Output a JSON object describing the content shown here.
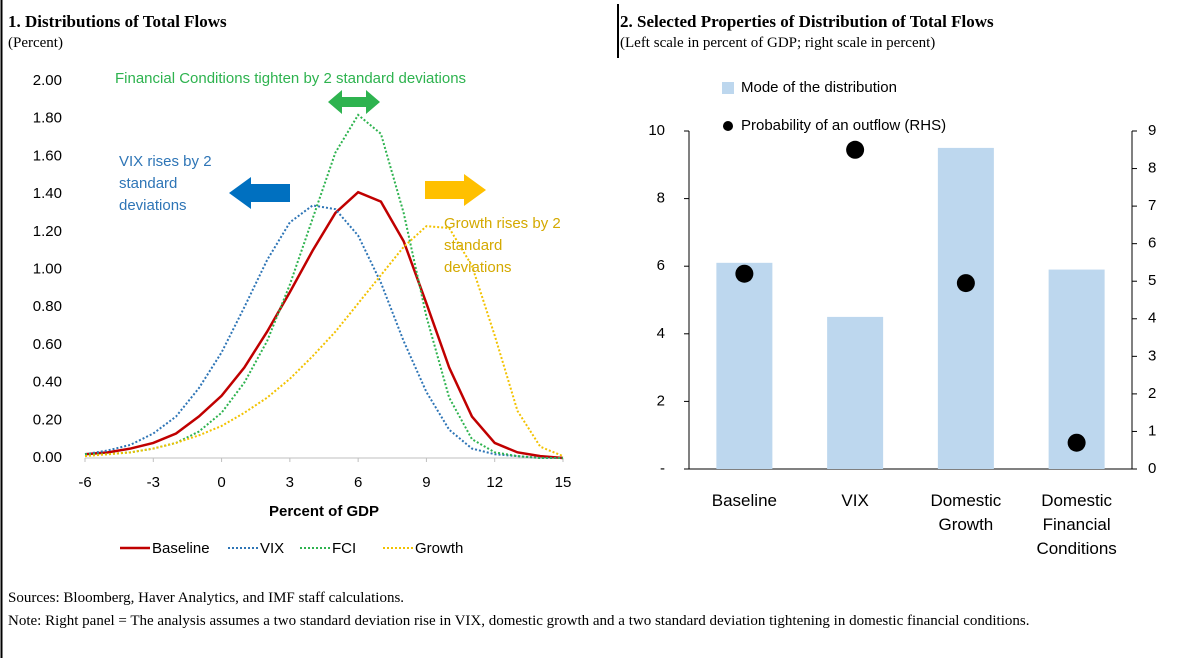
{
  "chart_data": [
    {
      "type": "line",
      "title": "1. Distributions of Total Flows",
      "subtitle": "(Percent)",
      "xlabel": "Percent of GDP",
      "x": [
        -6,
        -5,
        -4,
        -3,
        -2,
        -1,
        0,
        1,
        2,
        3,
        4,
        5,
        6,
        7,
        8,
        9,
        10,
        11,
        12,
        13,
        14,
        15
      ],
      "xlim": [
        -6,
        15
      ],
      "xticks": [
        -6,
        -3,
        0,
        3,
        6,
        9,
        12,
        15
      ],
      "ylim": [
        0,
        2
      ],
      "yticks": [
        {
          "value": 0,
          "label": "0.00"
        },
        {
          "value": 0.2,
          "label": "0.20"
        },
        {
          "value": 0.4,
          "label": "0.40"
        },
        {
          "value": 0.6,
          "label": "0.60"
        },
        {
          "value": 0.8,
          "label": "0.80"
        },
        {
          "value": 1,
          "label": "1.00"
        },
        {
          "value": 1.2,
          "label": "1.20"
        },
        {
          "value": 1.4,
          "label": "1.40"
        },
        {
          "value": 1.6,
          "label": "1.60"
        },
        {
          "value": 1.8,
          "label": "1.80"
        },
        {
          "value": 2,
          "label": "2.00"
        }
      ],
      "series": [
        {
          "name": "Baseline",
          "color": "#c00000",
          "dash": false,
          "values": [
            0.02,
            0.03,
            0.05,
            0.08,
            0.13,
            0.22,
            0.33,
            0.48,
            0.67,
            0.88,
            1.1,
            1.3,
            1.41,
            1.36,
            1.15,
            0.82,
            0.48,
            0.22,
            0.08,
            0.03,
            0.01,
            0
          ]
        },
        {
          "name": "VIX",
          "color": "#2e75b6",
          "dash": true,
          "values": [
            0.02,
            0.04,
            0.07,
            0.13,
            0.22,
            0.37,
            0.56,
            0.8,
            1.05,
            1.25,
            1.34,
            1.32,
            1.18,
            0.93,
            0.62,
            0.35,
            0.15,
            0.05,
            0.02,
            0.01,
            0,
            0
          ]
        },
        {
          "name": "FCI",
          "color": "#2eb34f",
          "dash": true,
          "values": [
            0.02,
            0.02,
            0.03,
            0.05,
            0.08,
            0.14,
            0.24,
            0.4,
            0.62,
            0.92,
            1.27,
            1.62,
            1.82,
            1.72,
            1.3,
            0.75,
            0.32,
            0.1,
            0.03,
            0.01,
            0,
            0
          ]
        },
        {
          "name": "Growth",
          "color": "#f2c200",
          "dash": true,
          "values": [
            0.01,
            0.02,
            0.03,
            0.05,
            0.08,
            0.12,
            0.17,
            0.24,
            0.32,
            0.42,
            0.54,
            0.67,
            0.82,
            0.97,
            1.12,
            1.23,
            1.22,
            1.02,
            0.65,
            0.25,
            0.06,
            0.01
          ]
        }
      ],
      "annotations": [
        {
          "text": "Financial Conditions tighten by 2 standard deviations",
          "color": "#2eb34f"
        },
        {
          "text": "VIX rises by 2 standard deviations",
          "color": "#2e75b6"
        },
        {
          "text": "Growth rises by 2 standard deviations",
          "color": "#d4a900"
        }
      ]
    },
    {
      "type": "bar",
      "title": "2. Selected Properties of Distribution of Total Flows",
      "subtitle": "(Left scale in percent of GDP; right scale in percent)",
      "categories": [
        "Baseline",
        "VIX",
        "Domestic Growth",
        "Domestic Financial Conditions"
      ],
      "ylim": [
        0,
        10
      ],
      "yticks": [
        {
          "value": 0,
          "label": "-"
        },
        2,
        4,
        6,
        8,
        10
      ],
      "y2lim": [
        0,
        9
      ],
      "y2ticks": [
        0,
        1,
        2,
        3,
        4,
        5,
        6,
        7,
        8,
        9
      ],
      "series": [
        {
          "name": "Mode of the distribution",
          "type": "bar",
          "color": "#bdd7ee",
          "values": [
            6.1,
            4.5,
            9.5,
            5.9
          ]
        },
        {
          "name": "Probability of an outflow (RHS)",
          "type": "scatter",
          "axis": "y2",
          "color": "#000000",
          "values": [
            5.2,
            8.5,
            4.95,
            0.7
          ]
        }
      ]
    }
  ],
  "sources": "Sources: Bloomberg, Haver Analytics, and IMF staff calculations.",
  "note": "Note: Right panel = The analysis assumes a two standard deviation rise in VIX, domestic growth and a two standard deviation tightening in domestic financial conditions."
}
